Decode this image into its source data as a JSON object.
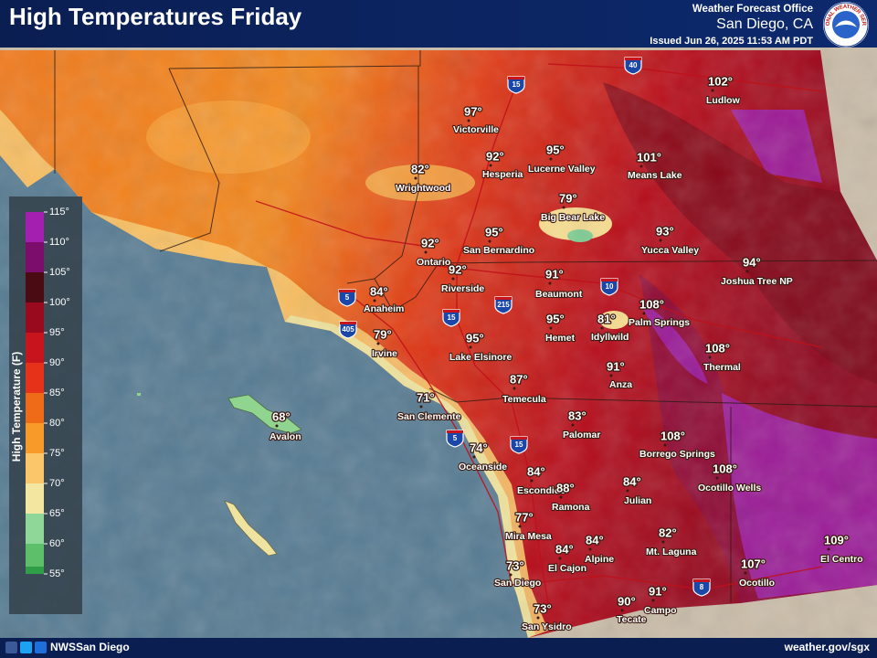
{
  "header": {
    "title": "High Temperatures Friday",
    "office": "Weather Forecast Office",
    "location": "San Diego, CA",
    "issued": "Issued Jun 26, 2025 11:53 AM PDT",
    "logo_text": "NATIONAL WEATHER SERVICE"
  },
  "legend": {
    "title": "High Temperature (F)",
    "ticks": [
      "115°",
      "110°",
      "105°",
      "100°",
      "95°",
      "90°",
      "85°",
      "80°",
      "75°",
      "70°",
      "65°",
      "60°",
      "55°"
    ],
    "colors": [
      "#a41fb0",
      "#7d0d6c",
      "#4a0b12",
      "#9a0a1e",
      "#c8141c",
      "#e7321a",
      "#f06b17",
      "#f89a2a",
      "#fbc569",
      "#f2e6a0",
      "#8fd699",
      "#5dbf6a",
      "#2f9e47"
    ]
  },
  "highways": [
    "40",
    "15",
    "5",
    "405",
    "215",
    "15",
    "10",
    "5",
    "15",
    "8"
  ],
  "cities": [
    {
      "name": "Ludlow",
      "temp": "102°"
    },
    {
      "name": "Victorville",
      "temp": "97°"
    },
    {
      "name": "Hesperia",
      "temp": "92°"
    },
    {
      "name": "Lucerne Valley",
      "temp": "95°"
    },
    {
      "name": "Means Lake",
      "temp": "101°"
    },
    {
      "name": "Wrightwood",
      "temp": "82°"
    },
    {
      "name": "Big Bear Lake",
      "temp": "79°"
    },
    {
      "name": "San Bernardino",
      "temp": "95°"
    },
    {
      "name": "Yucca Valley",
      "temp": "93°"
    },
    {
      "name": "Ontario",
      "temp": "92°"
    },
    {
      "name": "Joshua Tree NP",
      "temp": "94°"
    },
    {
      "name": "Riverside",
      "temp": "92°"
    },
    {
      "name": "Beaumont",
      "temp": "91°"
    },
    {
      "name": "Anaheim",
      "temp": "84°"
    },
    {
      "name": "Palm Springs",
      "temp": "108°"
    },
    {
      "name": "Hemet",
      "temp": "95°"
    },
    {
      "name": "Idyllwild",
      "temp": "81°"
    },
    {
      "name": "Irvine",
      "temp": "79°"
    },
    {
      "name": "Lake Elsinore",
      "temp": "95°"
    },
    {
      "name": "Thermal",
      "temp": "108°"
    },
    {
      "name": "Anza",
      "temp": "91°"
    },
    {
      "name": "Temecula",
      "temp": "87°"
    },
    {
      "name": "San Clemente",
      "temp": "71°"
    },
    {
      "name": "Avalon",
      "temp": "68°"
    },
    {
      "name": "Palomar",
      "temp": "83°"
    },
    {
      "name": "Borrego Springs",
      "temp": "108°"
    },
    {
      "name": "Oceanside",
      "temp": "74°"
    },
    {
      "name": "Ocotillo Wells",
      "temp": "108°"
    },
    {
      "name": "Escondido",
      "temp": "84°"
    },
    {
      "name": "Ramona",
      "temp": "88°"
    },
    {
      "name": "Julian",
      "temp": "84°"
    },
    {
      "name": "Mira Mesa",
      "temp": "77°"
    },
    {
      "name": "Alpine",
      "temp": "84°"
    },
    {
      "name": "Mt. Laguna",
      "temp": "82°"
    },
    {
      "name": "El Centro",
      "temp": "109°"
    },
    {
      "name": "El Cajon",
      "temp": "84°"
    },
    {
      "name": "Ocotillo",
      "temp": "107°"
    },
    {
      "name": "San Diego",
      "temp": "73°"
    },
    {
      "name": "Campo",
      "temp": "91°"
    },
    {
      "name": "Tecate",
      "temp": "90°"
    },
    {
      "name": "San Ysidro",
      "temp": "73°"
    }
  ],
  "footer": {
    "handle": "NWSSan Diego",
    "website": "weather.gov/sgx"
  }
}
